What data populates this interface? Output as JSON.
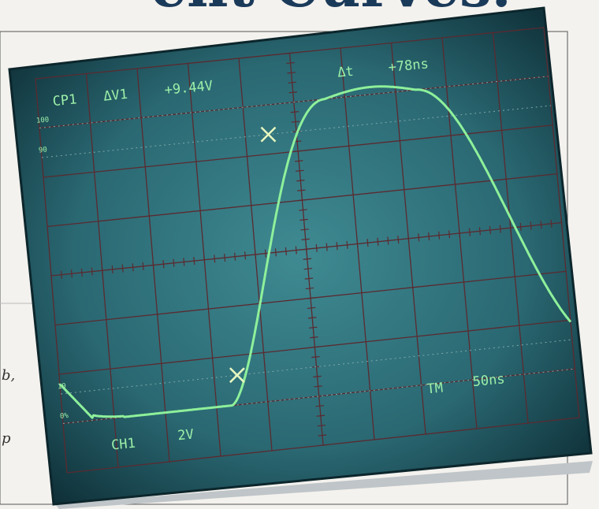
{
  "headline": "ent Curves.",
  "left_margin": [
    "b,",
    "p"
  ],
  "screen": {
    "cursor_label": "CP1",
    "delta_v_label": "ΔV1",
    "delta_v_value": "+9.44V",
    "delta_t_label": "Δt",
    "delta_t_value": "+78ns",
    "scale_labels": [
      "100",
      "90",
      "10",
      "0%"
    ],
    "channel": "CH1",
    "volts_per_div": "2V",
    "timebase_label": "TM",
    "timebase": "50ns"
  }
}
